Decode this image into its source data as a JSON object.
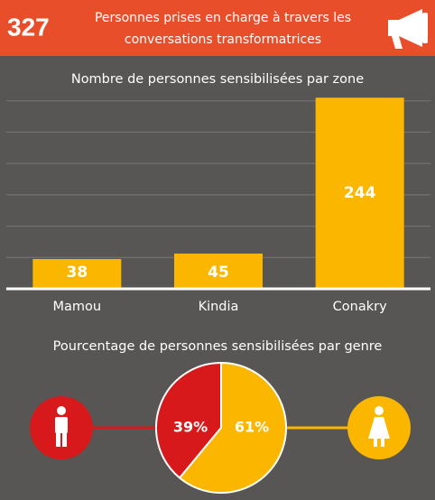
{
  "header": {
    "number": "327",
    "text_line1": "Personnes prises en charge à travers les",
    "text_line2": "conversations transformatrices"
  },
  "chart_data": [
    {
      "type": "bar",
      "title": "Nombre de personnes sensibilisées par zone",
      "categories": [
        "Mamou",
        "Kindia",
        "Conakry"
      ],
      "values": [
        38,
        45,
        244
      ],
      "color": "#fbb700",
      "ylim": [
        0,
        280
      ],
      "yticks": [
        0,
        40,
        80,
        120,
        160,
        200,
        240
      ],
      "grid": true
    },
    {
      "type": "pie",
      "title": "Pourcentage de personnes sensibilisées par genre",
      "categories": [
        null,
        null
      ],
      "values": [
        39,
        61
      ],
      "value_labels": [
        "39%",
        "61%"
      ],
      "colors": [
        "#d7191c",
        "#fbb700"
      ]
    }
  ]
}
